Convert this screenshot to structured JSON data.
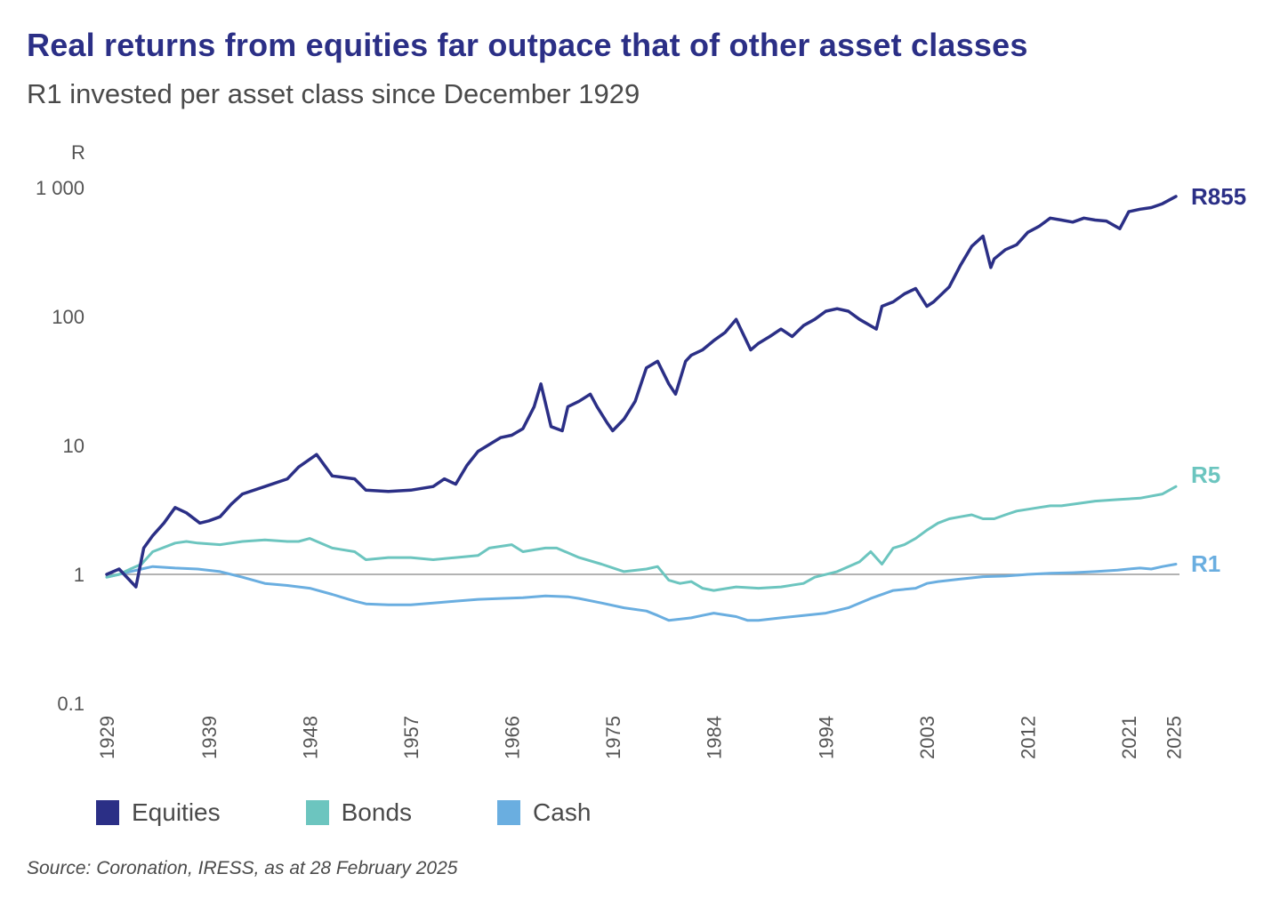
{
  "header": {
    "title": "Real returns from equities far outpace that of other asset classes",
    "subtitle": "R1 invested per asset class since December 1929"
  },
  "source": "Source: Coronation, IRESS, as at 28 February 2025",
  "colors": {
    "equities": "#2b2f86",
    "bonds": "#6cc5bf",
    "cash": "#6aaee0",
    "baseline": "#9a9a9a",
    "text": "#4a4a4a"
  },
  "chart_data": {
    "type": "line",
    "title": "Real returns from equities far outpace that of other asset classes",
    "subtitle": "R1 invested per asset class since December 1929",
    "ylabel": "R",
    "yscale": "log",
    "ylim": [
      0.1,
      1000
    ],
    "yticks": [
      0.1,
      1,
      10,
      100,
      1000
    ],
    "ytick_labels": [
      "0.1",
      "1",
      "10",
      "100",
      "1 000"
    ],
    "xlim": [
      1929.9,
      2025.2
    ],
    "xticks": [
      1929,
      1939,
      1948,
      1957,
      1966,
      1975,
      1984,
      1994,
      2003,
      2012,
      2021,
      2025
    ],
    "reference_line": 1,
    "legend": "bottom-left",
    "series": [
      {
        "name": "Equities",
        "end_label": "R855",
        "x": [
          1929.9,
          1931,
          1932.5,
          1933.2,
          1934,
          1935,
          1936,
          1937,
          1938.2,
          1939,
          1940,
          1941,
          1942,
          1944,
          1946,
          1947,
          1948.6,
          1950,
          1952,
          1953,
          1955,
          1957,
          1959,
          1960,
          1961,
          1962,
          1963,
          1965,
          1966,
          1967,
          1968,
          1968.6,
          1969.5,
          1970.5,
          1971,
          1972,
          1973,
          1973.6,
          1974.5,
          1975,
          1976,
          1977,
          1978,
          1979,
          1980,
          1980.6,
          1981.5,
          1982,
          1983,
          1984,
          1985,
          1986,
          1987.3,
          1988,
          1989,
          1990,
          1991,
          1992,
          1993,
          1994,
          1995,
          1996,
          1997,
          1998.5,
          1999,
          2000,
          2001,
          2002,
          2003,
          2003.6,
          2005,
          2006,
          2007,
          2008,
          2008.7,
          2009,
          2010,
          2011,
          2012,
          2013,
          2014,
          2015,
          2016,
          2017,
          2018,
          2019,
          2020.2,
          2021,
          2022,
          2023,
          2024,
          2025.2
        ],
        "values": [
          1.0,
          1.1,
          0.8,
          1.6,
          2.0,
          2.5,
          3.3,
          3.0,
          2.5,
          2.6,
          2.8,
          3.5,
          4.2,
          4.8,
          5.5,
          6.8,
          8.5,
          5.8,
          5.5,
          4.5,
          4.4,
          4.5,
          4.8,
          5.5,
          5.0,
          7.0,
          9.0,
          11.5,
          12.0,
          13.5,
          20.0,
          30.0,
          14.0,
          13.0,
          20.0,
          22.0,
          25.0,
          20.0,
          15.0,
          13.0,
          16.0,
          22.0,
          40.0,
          45.0,
          30.0,
          25.0,
          45.0,
          50.0,
          55.0,
          65.0,
          75.0,
          95.0,
          55.0,
          62.0,
          70.0,
          80.0,
          70.0,
          85.0,
          95.0,
          110.0,
          115.0,
          110.0,
          95.0,
          80.0,
          120.0,
          130.0,
          150.0,
          165.0,
          120.0,
          130.0,
          170.0,
          250.0,
          350.0,
          420.0,
          240.0,
          280.0,
          330.0,
          360.0,
          450.0,
          500.0,
          580.0,
          560.0,
          540.0,
          580.0,
          560.0,
          550.0,
          480.0,
          650.0,
          680.0,
          700.0,
          750.0,
          855.0
        ]
      },
      {
        "name": "Bonds",
        "end_label": "R5",
        "x": [
          1929.9,
          1931,
          1932,
          1933,
          1934,
          1936,
          1937,
          1938,
          1940,
          1942,
          1944,
          1946,
          1947,
          1948,
          1950,
          1952,
          1953,
          1955,
          1957,
          1959,
          1961,
          1963,
          1964,
          1966,
          1967,
          1969,
          1970,
          1972,
          1974,
          1976,
          1978,
          1979,
          1980,
          1981,
          1982,
          1983,
          1984,
          1986,
          1988,
          1990,
          1992,
          1993,
          1995,
          1997,
          1998,
          1999,
          2000,
          2001,
          2002,
          2003,
          2004,
          2005,
          2006,
          2007,
          2008,
          2009,
          2010,
          2011,
          2012,
          2013,
          2014,
          2015,
          2016,
          2018,
          2020,
          2022,
          2024,
          2025.2
        ],
        "values": [
          0.95,
          1.0,
          1.1,
          1.2,
          1.5,
          1.75,
          1.8,
          1.75,
          1.7,
          1.8,
          1.85,
          1.8,
          1.8,
          1.9,
          1.6,
          1.5,
          1.3,
          1.35,
          1.35,
          1.3,
          1.35,
          1.4,
          1.6,
          1.7,
          1.5,
          1.6,
          1.6,
          1.35,
          1.2,
          1.05,
          1.1,
          1.15,
          0.9,
          0.85,
          0.88,
          0.78,
          0.75,
          0.8,
          0.78,
          0.8,
          0.85,
          0.95,
          1.05,
          1.25,
          1.5,
          1.2,
          1.6,
          1.7,
          1.9,
          2.2,
          2.5,
          2.7,
          2.8,
          2.9,
          2.7,
          2.7,
          2.9,
          3.1,
          3.2,
          3.3,
          3.4,
          3.4,
          3.5,
          3.7,
          3.8,
          3.9,
          4.2,
          4.8
        ]
      },
      {
        "name": "Cash",
        "end_label": "R1",
        "x": [
          1929.9,
          1931,
          1932,
          1933,
          1934,
          1936,
          1938,
          1940,
          1942,
          1944,
          1946,
          1948,
          1950,
          1952,
          1953,
          1955,
          1957,
          1959,
          1961,
          1963,
          1965,
          1967,
          1969,
          1971,
          1972,
          1974,
          1976,
          1978,
          1979,
          1980,
          1982,
          1983,
          1984,
          1986,
          1987,
          1988,
          1990,
          1992,
          1994,
          1996,
          1998,
          2000,
          2002,
          2003,
          2004,
          2006,
          2008,
          2010,
          2012,
          2014,
          2016,
          2018,
          2020,
          2021,
          2022,
          2023,
          2024,
          2025.2
        ],
        "values": [
          0.95,
          1.0,
          1.05,
          1.1,
          1.15,
          1.12,
          1.1,
          1.05,
          0.95,
          0.85,
          0.82,
          0.78,
          0.7,
          0.62,
          0.59,
          0.58,
          0.58,
          0.6,
          0.62,
          0.64,
          0.65,
          0.66,
          0.68,
          0.67,
          0.65,
          0.6,
          0.55,
          0.52,
          0.48,
          0.44,
          0.46,
          0.48,
          0.5,
          0.47,
          0.44,
          0.44,
          0.46,
          0.48,
          0.5,
          0.55,
          0.65,
          0.75,
          0.78,
          0.85,
          0.88,
          0.92,
          0.96,
          0.97,
          1.0,
          1.02,
          1.03,
          1.05,
          1.08,
          1.1,
          1.12,
          1.1,
          1.15,
          1.2
        ]
      }
    ]
  }
}
